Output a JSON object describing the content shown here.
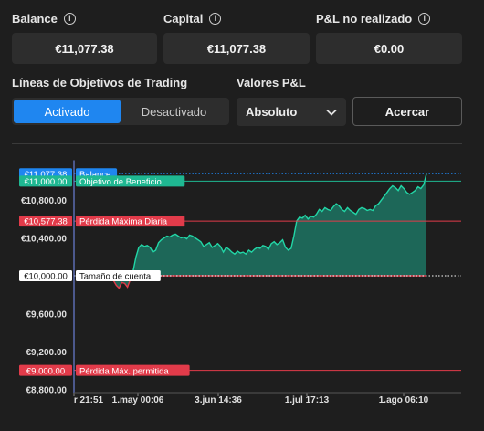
{
  "stats": {
    "balance": {
      "label": "Balance",
      "value": "€11,077.38"
    },
    "capital": {
      "label": "Capital",
      "value": "€11,077.38"
    },
    "pnl": {
      "label": "P&L no realizado",
      "value": "€0.00"
    }
  },
  "objectives": {
    "label": "Líneas de Objetivos de Trading",
    "active": "Activado",
    "inactive": "Desactivado"
  },
  "pnl_values": {
    "label": "Valores P&L",
    "selected": "Absoluto",
    "zoom_button": "Acercar"
  },
  "colors": {
    "accent": "#1f86f0",
    "profit_target": "#1fb892",
    "loss": "#e23b4a",
    "area": "#1e6b5c"
  },
  "chart_data": {
    "type": "area",
    "y_ticks": [
      "€10,800.00",
      "€10,400.00",
      "€9,600.00",
      "€9,200.00",
      "€8,800.00"
    ],
    "ylim": [
      8700,
      11250
    ],
    "x_ticks": [
      "r 21:51",
      "1.may 00:06",
      "3.jun 14:36",
      "1.jul 17:13",
      "1.ago 06:10"
    ],
    "lines": [
      {
        "name": "Balance",
        "value": 11077.38,
        "value_label": "€11,077.38",
        "color": "#1f86f0",
        "style": "dotted"
      },
      {
        "name": "Objetivo de Beneficio",
        "value": 11000,
        "value_label": "€11,000.00",
        "color": "#1fb892",
        "style": "solid"
      },
      {
        "name": "Pérdida Máxima Diaria",
        "value": 10577.38,
        "value_label": "€10,577.38",
        "color": "#e23b4a",
        "style": "solid"
      },
      {
        "name": "Tamaño de cuenta",
        "value": 10000,
        "value_label": "€10,000.00",
        "color": "#ffffff",
        "style": "dotted"
      },
      {
        "name": "Pérdida Máx. permitida",
        "value": 9000,
        "value_label": "€9,000.00",
        "color": "#e23b4a",
        "style": "solid"
      }
    ],
    "series_values": [
      10000,
      9980,
      9950,
      9900,
      9870,
      9930,
      9920,
      9880,
      9960,
      10050,
      10200,
      10300,
      10330,
      10310,
      10320,
      10300,
      10250,
      10270,
      10350,
      10380,
      10400,
      10420,
      10410,
      10430,
      10440,
      10420,
      10400,
      10410,
      10390,
      10430,
      10420,
      10400,
      10380,
      10360,
      10310,
      10330,
      10350,
      10300,
      10320,
      10340,
      10310,
      10250,
      10300,
      10280,
      10250,
      10230,
      10260,
      10240,
      10250,
      10230,
      10270,
      10250,
      10280,
      10300,
      10290,
      10320,
      10310,
      10280,
      10340,
      10360,
      10330,
      10350,
      10380,
      10300,
      10270,
      10290,
      10420,
      10580,
      10620,
      10610,
      10640,
      10600,
      10630,
      10620,
      10650,
      10700,
      10680,
      10720,
      10700,
      10690,
      10730,
      10760,
      10740,
      10700,
      10680,
      10720,
      10690,
      10670,
      10650,
      10700,
      10720,
      10710,
      10690,
      10700,
      10690,
      10740,
      10760,
      10800,
      10840,
      10880,
      10920,
      10950,
      10930,
      10900,
      10950,
      10920,
      10880,
      10860,
      10880,
      10900,
      10940,
      10920,
      10960,
      11077.38
    ]
  }
}
